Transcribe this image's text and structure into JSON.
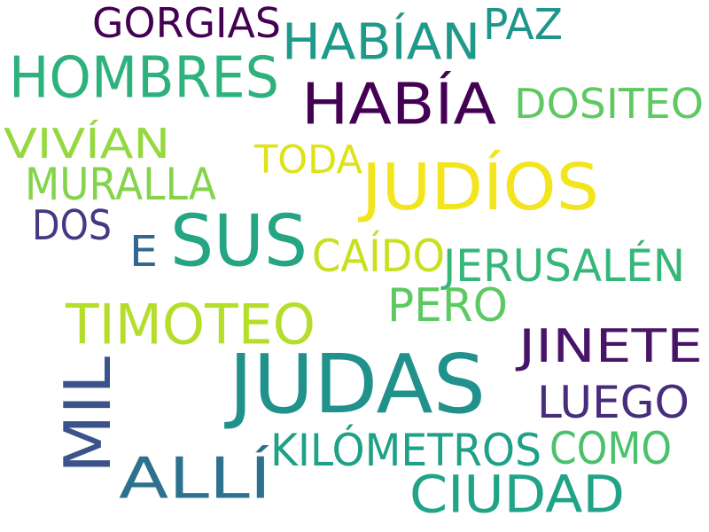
{
  "words": [
    {
      "text": "JUDAS",
      "color": "#21918c"
    },
    {
      "text": "SUS",
      "color": "#25a584"
    },
    {
      "text": "JUDÍOS",
      "color": "#f2e51d"
    },
    {
      "text": "HABÍA",
      "color": "#440154"
    },
    {
      "text": "HOMBRES",
      "color": "#2db27d"
    },
    {
      "text": "CIUDAD",
      "color": "#20a386"
    },
    {
      "text": "MIL",
      "color": "#3b528b"
    },
    {
      "text": "TIMOTEO",
      "color": "#b5de2b"
    },
    {
      "text": "ALLÍ",
      "color": "#2c728e"
    },
    {
      "text": "HABÍAN",
      "color": "#1f9a8a"
    },
    {
      "text": "JINETE",
      "color": "#481467"
    },
    {
      "text": "LUEGO",
      "color": "#472d7b"
    },
    {
      "text": "COMO",
      "color": "#4ac16d"
    },
    {
      "text": "DOSITEO",
      "color": "#5ec962"
    },
    {
      "text": "GORGIAS",
      "color": "#440154"
    },
    {
      "text": "JERUSALÉN",
      "color": "#35b779"
    },
    {
      "text": "PERO",
      "color": "#5ec962"
    },
    {
      "text": "KILÓMETROS",
      "color": "#1fa187"
    },
    {
      "text": "MURALLA",
      "color": "#84d44b"
    },
    {
      "text": "VIVÍAN",
      "color": "#95d840"
    },
    {
      "text": "CAÍDO",
      "color": "#c8e020"
    },
    {
      "text": "TODA",
      "color": "#dde318"
    },
    {
      "text": "PAZ",
      "color": "#1f968b"
    },
    {
      "text": "DOS",
      "color": "#443983"
    },
    {
      "text": "E",
      "color": "#31688e"
    }
  ]
}
